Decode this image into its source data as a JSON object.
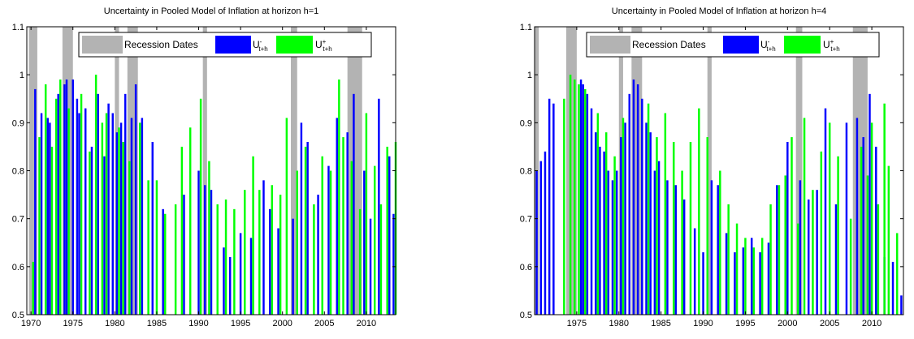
{
  "chart_data": [
    {
      "type": "bar",
      "title": "Uncertainty in Pooled Model of Inflation at horizon h=1",
      "xlabel": "",
      "ylabel": "",
      "xlim": [
        1969.5,
        2013.5
      ],
      "ylim": [
        0.5,
        1.1
      ],
      "xticks": [
        1970,
        1975,
        1980,
        1985,
        1990,
        1995,
        2000,
        2005,
        2010
      ],
      "yticks": [
        0.5,
        0.6,
        0.7,
        0.8,
        0.9,
        1,
        1.1
      ],
      "grid": false,
      "legend": {
        "position": "top",
        "entries": [
          {
            "label": "Recession Dates",
            "label_sub": "",
            "label_sup": ""
          },
          {
            "label": "U",
            "label_sub": "t+h",
            "label_sup": "-"
          },
          {
            "label": "U",
            "label_sub": "t+h",
            "label_sup": "+"
          }
        ]
      },
      "colors": {
        "recession": "#b3b3b3",
        "lower": "#0000ff",
        "upper": "#00ff00"
      },
      "recessions": [
        [
          1969.75,
          1970.75
        ],
        [
          1973.75,
          1975.0
        ],
        [
          1980.0,
          1980.5
        ],
        [
          1981.5,
          1982.75
        ],
        [
          1990.5,
          1991.0
        ],
        [
          2001.0,
          2001.75
        ],
        [
          2007.75,
          2009.5
        ]
      ],
      "series": [
        {
          "name": "U⁻ t+h",
          "x": [
            1970.5,
            1971.25,
            1972.0,
            1972.25,
            1973.25,
            1974.0,
            1974.25,
            1975.0,
            1975.5,
            1975.75,
            1976.5,
            1977.25,
            1978.0,
            1978.75,
            1979.25,
            1979.75,
            1980.25,
            1980.75,
            1981.25,
            1982.0,
            1982.5,
            1983.25,
            1984.5,
            1985.75,
            1988.25,
            1990.0,
            1990.75,
            1991.5,
            1993.0,
            1993.75,
            1995.0,
            1996.25,
            1997.75,
            1998.5,
            1999.5,
            2001.25,
            2002.25,
            2003.0,
            2004.25,
            2005.5,
            2006.5,
            2007.75,
            2008.5,
            2009.75,
            2010.5,
            2011.5,
            2012.75,
            2013.25
          ],
          "values": [
            0.97,
            0.92,
            0.91,
            0.9,
            0.96,
            0.98,
            0.99,
            0.99,
            0.95,
            0.92,
            0.93,
            0.85,
            0.96,
            0.83,
            0.94,
            0.92,
            0.88,
            0.9,
            0.96,
            0.91,
            0.98,
            0.91,
            0.86,
            0.72,
            0.75,
            0.8,
            0.77,
            0.76,
            0.64,
            0.62,
            0.67,
            0.66,
            0.78,
            0.72,
            0.68,
            0.7,
            0.9,
            0.86,
            0.75,
            0.81,
            0.91,
            0.88,
            0.96,
            0.8,
            0.7,
            0.95,
            0.83,
            0.71
          ]
        },
        {
          "name": "U⁺ t+h",
          "x": [
            1970.25,
            1971.0,
            1971.75,
            1972.5,
            1973.0,
            1973.5,
            1974.5,
            1976.0,
            1977.0,
            1977.75,
            1978.5,
            1979.0,
            1980.5,
            1981.0,
            1981.75,
            1983.0,
            1984.0,
            1985.0,
            1986.0,
            1987.25,
            1988.0,
            1989.0,
            1990.25,
            1991.25,
            1992.25,
            1993.25,
            1994.25,
            1995.5,
            1996.5,
            1997.25,
            1998.75,
            1999.75,
            2000.5,
            2001.75,
            2002.75,
            2003.75,
            2004.75,
            2005.75,
            2006.75,
            2007.25,
            2008.25,
            2009.25,
            2010.0,
            2011.0,
            2011.75,
            2012.5,
            2013.5
          ],
          "values": [
            0.61,
            0.87,
            0.98,
            0.85,
            0.95,
            0.99,
            0.93,
            0.96,
            0.84,
            1.0,
            0.9,
            0.92,
            0.89,
            0.86,
            0.82,
            0.9,
            0.78,
            0.78,
            0.71,
            0.73,
            0.85,
            0.89,
            0.95,
            0.82,
            0.73,
            0.74,
            0.72,
            0.76,
            0.83,
            0.76,
            0.77,
            0.75,
            0.91,
            0.8,
            0.85,
            0.73,
            0.83,
            0.8,
            0.99,
            0.87,
            0.82,
            0.72,
            0.92,
            0.81,
            0.73,
            0.85,
            0.86
          ]
        }
      ]
    },
    {
      "type": "bar",
      "title": "Uncertainty in Pooled Model of Inflation at horizon h=4",
      "xlabel": "",
      "ylabel": "",
      "xlim": [
        1970.0,
        2013.75
      ],
      "ylim": [
        0.5,
        1.1
      ],
      "xticks": [
        1975,
        1980,
        1985,
        1990,
        1995,
        2000,
        2005,
        2010
      ],
      "yticks": [
        0.5,
        0.6,
        0.7,
        0.8,
        0.9,
        1,
        1.1
      ],
      "grid": false,
      "legend": {
        "position": "top",
        "entries": [
          {
            "label": "Recession Dates",
            "label_sub": "",
            "label_sup": ""
          },
          {
            "label": "U",
            "label_sub": "t+h",
            "label_sup": "-"
          },
          {
            "label": "U",
            "label_sub": "t+h",
            "label_sup": "+"
          }
        ]
      },
      "colors": {
        "recession": "#b3b3b3",
        "lower": "#0000ff",
        "upper": "#00ff00"
      },
      "recessions": [
        [
          1970.0,
          1970.5
        ],
        [
          1973.75,
          1975.0
        ],
        [
          1980.0,
          1980.5
        ],
        [
          1981.5,
          1982.75
        ],
        [
          1990.5,
          1991.0
        ],
        [
          2001.0,
          2001.75
        ],
        [
          2007.75,
          2009.5
        ]
      ],
      "series": [
        {
          "name": "U⁻ t+h",
          "x": [
            1970.25,
            1970.75,
            1971.25,
            1971.75,
            1972.25,
            1975.5,
            1975.75,
            1976.25,
            1976.75,
            1977.25,
            1977.75,
            1978.25,
            1978.75,
            1979.25,
            1979.75,
            1980.25,
            1980.75,
            1981.25,
            1981.75,
            1982.25,
            1982.75,
            1983.25,
            1983.75,
            1984.25,
            1984.75,
            1985.75,
            1986.75,
            1987.75,
            1989.0,
            1990.0,
            1991.0,
            1991.75,
            1992.75,
            1993.75,
            1994.75,
            1995.75,
            1996.75,
            1997.75,
            1998.75,
            2000.0,
            2001.5,
            2002.5,
            2003.5,
            2004.5,
            2005.75,
            2007.0,
            2008.25,
            2009.0,
            2009.75,
            2010.5,
            2011.5,
            2012.5,
            2013.5
          ],
          "values": [
            0.8,
            0.82,
            0.84,
            0.95,
            0.94,
            0.99,
            0.98,
            0.96,
            0.93,
            0.88,
            0.85,
            0.84,
            0.8,
            0.78,
            0.8,
            0.87,
            0.9,
            0.96,
            0.99,
            0.98,
            0.95,
            0.9,
            0.88,
            0.8,
            0.82,
            0.78,
            0.77,
            0.74,
            0.68,
            0.63,
            0.78,
            0.77,
            0.67,
            0.63,
            0.64,
            0.66,
            0.63,
            0.65,
            0.77,
            0.86,
            0.78,
            0.74,
            0.76,
            0.93,
            0.73,
            0.9,
            0.91,
            0.87,
            0.96,
            0.85,
            0.62,
            0.61,
            0.54
          ]
        },
        {
          "name": "U⁺ t+h",
          "x": [
            1973.5,
            1974.25,
            1974.75,
            1975.25,
            1976.0,
            1977.5,
            1978.5,
            1979.5,
            1980.5,
            1983.5,
            1984.5,
            1985.5,
            1986.5,
            1987.5,
            1988.5,
            1989.5,
            1990.5,
            1992.0,
            1993.0,
            1994.0,
            1995.0,
            1996.0,
            1997.0,
            1998.0,
            1999.0,
            1999.75,
            2000.5,
            2001.25,
            2002.0,
            2003.0,
            2004.0,
            2005.0,
            2006.0,
            2007.5,
            2008.75,
            2009.5,
            2010.0,
            2010.75,
            2011.5,
            2012.0,
            2013.0
          ],
          "values": [
            0.95,
            1.0,
            0.99,
            0.98,
            0.97,
            0.92,
            0.88,
            0.83,
            0.91,
            0.94,
            0.87,
            0.92,
            0.86,
            0.8,
            0.86,
            0.93,
            0.87,
            0.8,
            0.73,
            0.69,
            0.66,
            0.64,
            0.66,
            0.73,
            0.77,
            0.79,
            0.87,
            0.69,
            0.91,
            0.76,
            0.84,
            0.9,
            0.83,
            0.7,
            0.85,
            0.79,
            0.9,
            0.73,
            0.94,
            0.81,
            0.67
          ]
        }
      ]
    }
  ]
}
